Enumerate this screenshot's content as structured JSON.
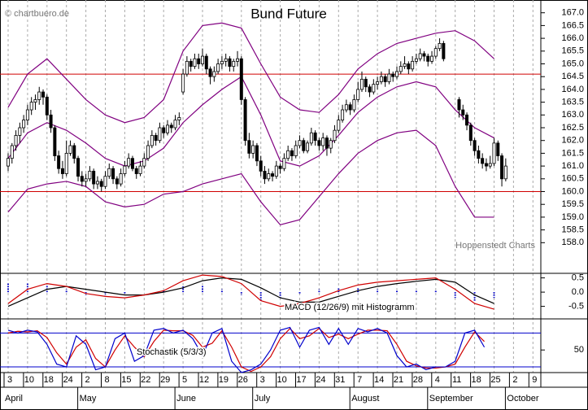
{
  "chart_data": {
    "type": "candlestick",
    "title": "Bund Future",
    "watermark": "© chartbuero.de",
    "source": "Hoppenstedt Charts",
    "ylim": [
      156.8,
      167.5
    ],
    "yticks": [
      {
        "value": 158,
        "label": "158.0"
      },
      {
        "value": 158.5,
        "label": "158.5"
      },
      {
        "value": 159,
        "label": "159.0"
      },
      {
        "value": 159.5,
        "label": "159.5"
      },
      {
        "value": 160,
        "label": "160.0"
      },
      {
        "value": 160.5,
        "label": "160.5"
      },
      {
        "value": 161,
        "label": "161.0"
      },
      {
        "value": 161.5,
        "label": "161.5"
      },
      {
        "value": 162,
        "label": "162.0"
      },
      {
        "value": 162.5,
        "label": "162.5"
      },
      {
        "value": 163,
        "label": "163.0"
      },
      {
        "value": 163.5,
        "label": "163.5"
      },
      {
        "value": 164,
        "label": "164.0"
      },
      {
        "value": 164.5,
        "label": "164.5"
      },
      {
        "value": 165,
        "label": "165.0"
      },
      {
        "value": 165.5,
        "label": "165.5"
      },
      {
        "value": 166,
        "label": "166.0"
      },
      {
        "value": 166.5,
        "label": "166.5"
      },
      {
        "value": 167,
        "label": "167.0"
      }
    ],
    "hlines": [
      164.6,
      160.0
    ],
    "hline_color": "#d00000",
    "band_color": "#800080",
    "candles": [
      [
        161.0,
        161.5,
        160.8,
        161.3
      ],
      [
        161.3,
        161.9,
        161.1,
        161.8
      ],
      [
        161.8,
        162.4,
        161.6,
        162.2
      ],
      [
        162.2,
        162.7,
        161.9,
        162.5
      ],
      [
        162.5,
        163.0,
        162.3,
        162.8
      ],
      [
        162.8,
        163.4,
        162.6,
        163.2
      ],
      [
        163.2,
        163.7,
        163.0,
        163.5
      ],
      [
        163.5,
        163.8,
        163.2,
        163.6
      ],
      [
        163.6,
        164.1,
        163.4,
        163.9
      ],
      [
        163.9,
        164.0,
        163.4,
        163.7
      ],
      [
        163.7,
        163.8,
        162.8,
        163.0
      ],
      [
        163.0,
        163.2,
        162.3,
        162.5
      ],
      [
        162.5,
        162.6,
        161.2,
        161.4
      ],
      [
        161.4,
        161.6,
        160.7,
        160.9
      ],
      [
        160.9,
        161.2,
        160.5,
        160.7
      ],
      [
        160.7,
        162.0,
        160.6,
        161.5
      ],
      [
        161.5,
        162.0,
        161.4,
        161.8
      ],
      [
        161.8,
        161.9,
        161.1,
        161.3
      ],
      [
        161.3,
        161.4,
        160.4,
        160.6
      ],
      [
        160.6,
        160.8,
        160.2,
        160.4
      ],
      [
        160.4,
        160.7,
        160.2,
        160.5
      ],
      [
        160.5,
        161.0,
        160.4,
        160.8
      ],
      [
        160.8,
        160.9,
        160.1,
        160.3
      ],
      [
        160.3,
        160.6,
        160.1,
        160.4
      ],
      [
        160.4,
        160.5,
        160.0,
        160.2
      ],
      [
        160.2,
        160.8,
        160.1,
        160.6
      ],
      [
        160.6,
        161.1,
        160.5,
        160.9
      ],
      [
        160.9,
        161.0,
        160.3,
        160.5
      ],
      [
        160.5,
        160.6,
        160.1,
        160.3
      ],
      [
        160.3,
        160.9,
        160.2,
        160.7
      ],
      [
        160.7,
        161.2,
        160.6,
        161.0
      ],
      [
        161.0,
        161.5,
        160.9,
        161.3
      ],
      [
        161.3,
        161.4,
        160.8,
        160.9
      ],
      [
        160.9,
        161.0,
        160.5,
        160.7
      ],
      [
        160.7,
        161.2,
        160.6,
        161.0
      ],
      [
        161.0,
        161.5,
        160.9,
        161.3
      ],
      [
        161.3,
        162.0,
        161.2,
        161.8
      ],
      [
        161.8,
        162.4,
        161.7,
        162.2
      ],
      [
        162.2,
        162.3,
        161.8,
        162.0
      ],
      [
        162.0,
        162.7,
        161.9,
        162.5
      ],
      [
        162.5,
        162.6,
        162.1,
        162.3
      ],
      [
        162.3,
        162.8,
        162.2,
        162.6
      ],
      [
        162.6,
        162.7,
        162.3,
        162.5
      ],
      [
        162.5,
        163.0,
        162.4,
        162.8
      ],
      [
        162.8,
        163.1,
        162.6,
        162.9
      ],
      [
        163.9,
        164.8,
        163.8,
        164.6
      ],
      [
        164.6,
        165.3,
        164.5,
        165.1
      ],
      [
        165.1,
        165.2,
        164.7,
        164.9
      ],
      [
        164.9,
        165.4,
        164.8,
        165.2
      ],
      [
        165.2,
        165.4,
        164.8,
        165.0
      ],
      [
        165.0,
        165.6,
        164.9,
        165.3
      ],
      [
        165.3,
        165.4,
        164.6,
        164.8
      ],
      [
        164.8,
        164.9,
        164.2,
        164.5
      ],
      [
        164.5,
        164.9,
        164.3,
        164.7
      ],
      [
        164.7,
        165.2,
        164.6,
        165.0
      ],
      [
        165.0,
        165.3,
        164.8,
        165.1
      ],
      [
        165.1,
        165.4,
        164.9,
        165.2
      ],
      [
        165.2,
        165.3,
        164.7,
        164.9
      ],
      [
        164.9,
        165.2,
        164.7,
        165.1
      ],
      [
        165.1,
        165.5,
        164.9,
        165.2
      ],
      [
        165.2,
        165.3,
        163.4,
        163.6
      ],
      [
        163.6,
        163.7,
        161.8,
        162.0
      ],
      [
        162.0,
        162.3,
        161.3,
        161.5
      ],
      [
        161.5,
        162.0,
        161.3,
        161.8
      ],
      [
        161.8,
        161.9,
        161.0,
        161.2
      ],
      [
        161.2,
        161.4,
        160.6,
        160.8
      ],
      [
        160.8,
        161.0,
        160.3,
        160.5
      ],
      [
        160.5,
        160.9,
        160.4,
        160.7
      ],
      [
        160.7,
        160.8,
        160.4,
        160.6
      ],
      [
        160.6,
        161.2,
        160.5,
        161.0
      ],
      [
        161.0,
        161.1,
        160.7,
        160.9
      ],
      [
        160.9,
        161.5,
        160.8,
        161.3
      ],
      [
        161.3,
        161.8,
        161.2,
        161.6
      ],
      [
        161.6,
        161.7,
        161.2,
        161.4
      ],
      [
        161.4,
        162.0,
        161.3,
        161.8
      ],
      [
        161.8,
        162.2,
        161.7,
        162.0
      ],
      [
        162.0,
        162.1,
        161.5,
        161.6
      ],
      [
        161.6,
        162.0,
        161.5,
        161.9
      ],
      [
        161.9,
        162.5,
        161.8,
        162.3
      ],
      [
        162.3,
        162.4,
        161.8,
        162.0
      ],
      [
        162.0,
        162.1,
        161.6,
        161.8
      ],
      [
        161.8,
        162.3,
        161.6,
        162.1
      ],
      [
        162.1,
        162.2,
        161.4,
        161.7
      ],
      [
        161.7,
        162.1,
        161.5,
        162.0
      ],
      [
        162.0,
        162.6,
        161.9,
        162.4
      ],
      [
        162.4,
        163.0,
        162.3,
        162.8
      ],
      [
        162.8,
        163.4,
        162.7,
        163.2
      ],
      [
        163.2,
        163.6,
        163.1,
        163.4
      ],
      [
        163.4,
        163.5,
        163.0,
        163.2
      ],
      [
        163.2,
        163.8,
        163.1,
        163.6
      ],
      [
        163.6,
        164.3,
        163.5,
        164.0
      ],
      [
        164.0,
        164.7,
        163.9,
        164.4
      ],
      [
        164.4,
        164.5,
        163.9,
        164.1
      ],
      [
        164.1,
        164.2,
        163.7,
        163.9
      ],
      [
        163.9,
        164.4,
        163.8,
        164.2
      ],
      [
        164.2,
        164.5,
        164.0,
        164.3
      ],
      [
        164.3,
        164.7,
        164.2,
        164.5
      ],
      [
        164.5,
        164.6,
        164.1,
        164.3
      ],
      [
        164.3,
        164.8,
        164.2,
        164.6
      ],
      [
        164.6,
        164.7,
        164.3,
        164.5
      ],
      [
        164.5,
        164.9,
        164.4,
        164.7
      ],
      [
        164.7,
        165.1,
        164.6,
        164.9
      ],
      [
        164.9,
        165.3,
        164.8,
        165.0
      ],
      [
        165.0,
        165.1,
        164.6,
        164.8
      ],
      [
        164.8,
        165.3,
        164.7,
        165.1
      ],
      [
        165.1,
        165.4,
        165.0,
        165.2
      ],
      [
        165.2,
        165.6,
        165.1,
        165.4
      ],
      [
        165.4,
        165.5,
        165.1,
        165.3
      ],
      [
        165.3,
        165.4,
        164.9,
        165.1
      ],
      [
        165.1,
        165.5,
        165.0,
        165.3
      ],
      [
        165.3,
        165.7,
        165.2,
        165.6
      ],
      [
        165.6,
        166.0,
        165.5,
        165.8
      ],
      [
        165.8,
        165.9,
        165.1,
        165.2
      ],
      null,
      null,
      null,
      [
        163.6,
        163.7,
        162.9,
        163.2
      ],
      [
        163.2,
        163.4,
        162.8,
        163.0
      ],
      [
        163.0,
        163.1,
        162.4,
        162.6
      ],
      [
        162.6,
        162.7,
        161.8,
        162.0
      ],
      [
        162.0,
        162.1,
        161.4,
        161.6
      ],
      [
        161.6,
        161.8,
        161.1,
        161.3
      ],
      [
        161.3,
        161.5,
        160.9,
        161.1
      ],
      [
        161.1,
        161.3,
        160.8,
        161.0
      ],
      [
        161.0,
        161.4,
        160.9,
        161.1
      ],
      [
        161.1,
        162.1,
        161.0,
        161.9
      ],
      [
        161.9,
        162.0,
        161.2,
        161.4
      ],
      [
        161.4,
        161.5,
        160.2,
        160.5
      ],
      [
        160.5,
        161.3,
        160.4,
        161.0
      ],
      null
    ],
    "bands": {
      "upper": [
        163.3,
        164.6,
        165.2,
        164.4,
        163.6,
        163.0,
        162.7,
        162.9,
        163.6,
        165.5,
        166.5,
        166.6,
        166.4,
        165.0,
        163.7,
        163.2,
        163.1,
        163.8,
        164.8,
        165.4,
        165.8,
        166.0,
        166.2,
        166.3,
        165.9,
        165.2
      ],
      "middle": [
        161.3,
        162.3,
        162.7,
        162.4,
        161.9,
        161.3,
        161.0,
        161.2,
        161.7,
        162.7,
        163.4,
        164.0,
        164.5,
        163.0,
        161.2,
        161.0,
        161.4,
        162.2,
        163.1,
        163.7,
        164.1,
        164.3,
        164.1,
        163.2,
        162.5,
        162.1
      ],
      "lower": [
        159.2,
        160.1,
        160.3,
        160.4,
        160.2,
        159.6,
        159.4,
        159.5,
        159.9,
        160.0,
        160.3,
        160.5,
        160.7,
        159.6,
        158.7,
        158.9,
        159.8,
        160.7,
        161.5,
        162.0,
        162.3,
        162.4,
        161.8,
        160.2,
        159.0,
        159.0
      ]
    },
    "macd": {
      "label": "MACD (12/26/9) mit Histogramm",
      "ylim": [
        -0.94,
        0.66
      ],
      "yticks": [
        0.5,
        {
          "value": 0,
          "label": "0.0"
        },
        -0.5
      ],
      "macd_color": "#d00000",
      "signal_color": "#000000",
      "hist_color": "#0000cc",
      "macd": [
        -0.4,
        0.1,
        0.3,
        0.2,
        -0.05,
        -0.15,
        -0.2,
        -0.1,
        0.05,
        0.4,
        0.6,
        0.55,
        0.3,
        -0.3,
        -0.5,
        -0.4,
        -0.2,
        0.05,
        0.25,
        0.35,
        0.4,
        0.45,
        0.5,
        0.1,
        -0.4,
        -0.6
      ],
      "signal": [
        -0.5,
        -0.2,
        0.1,
        0.2,
        0.1,
        0.0,
        -0.1,
        -0.1,
        0.0,
        0.15,
        0.4,
        0.5,
        0.45,
        0.15,
        -0.2,
        -0.35,
        -0.35,
        -0.15,
        0.05,
        0.2,
        0.3,
        0.38,
        0.45,
        0.35,
        -0.1,
        -0.4
      ],
      "histogram": [
        0.3,
        0.3,
        0.25,
        0.1,
        -0.1,
        -0.1,
        -0.05,
        0,
        0.05,
        0.2,
        0.25,
        0.1,
        -0.1,
        -0.3,
        -0.2,
        -0.05,
        0.1,
        0.15,
        0.15,
        0.1,
        0.08,
        0.05,
        0.05,
        -0.2,
        -0.3,
        -0.2
      ]
    },
    "stoch": {
      "label": "Stochastik (5/3/3)",
      "ylim": [
        10,
        105
      ],
      "yticks": [
        50
      ],
      "hlines": [
        80,
        20
      ],
      "hline_color": "#0000cc",
      "k_color": "#0000cc",
      "d_color": "#d00000",
      "k": [
        85,
        80,
        85,
        82,
        60,
        25,
        20,
        75,
        60,
        15,
        20,
        70,
        80,
        30,
        40,
        85,
        88,
        80,
        85,
        70,
        40,
        80,
        88,
        30,
        10,
        15,
        25,
        50,
        85,
        90,
        55,
        85,
        90,
        60,
        88,
        60,
        88,
        82,
        88,
        80,
        40,
        20,
        25,
        15,
        20,
        20,
        30,
        80,
        85,
        55
      ],
      "d": [
        80,
        83,
        82,
        84,
        72,
        45,
        25,
        55,
        68,
        35,
        20,
        50,
        75,
        55,
        38,
        65,
        85,
        84,
        84,
        76,
        55,
        62,
        84,
        55,
        20,
        12,
        20,
        38,
        70,
        88,
        70,
        75,
        88,
        72,
        78,
        70,
        78,
        85,
        85,
        84,
        60,
        30,
        22,
        18,
        18,
        20,
        25,
        55,
        82,
        65
      ]
    },
    "x_labels": [
      "3",
      "10",
      "18",
      "24",
      "2",
      "8",
      "15",
      "22",
      "29",
      "5",
      "12",
      "19",
      "26",
      "3",
      "10",
      "17",
      "24",
      "31",
      "7",
      "14",
      "21",
      "28",
      "4",
      "11",
      "18",
      "25",
      "2",
      "9"
    ],
    "months": [
      "April",
      "May",
      "June",
      "July",
      "August",
      "September",
      "October"
    ]
  }
}
